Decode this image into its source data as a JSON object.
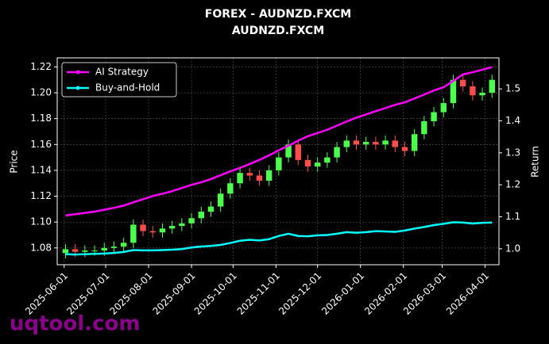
{
  "chart_data": {
    "type": "candlestick",
    "title": "FOREX - AUDNZD.FXCM",
    "subtitle": "AUDNZD.FXCM",
    "ylabel": "Price",
    "y2label": "Return",
    "watermark": "uqtool.com",
    "x": [
      "2025-06-02",
      "2025-06-09",
      "2025-06-16",
      "2025-06-23",
      "2025-06-30",
      "2025-07-07",
      "2025-07-14",
      "2025-07-21",
      "2025-07-28",
      "2025-08-04",
      "2025-08-11",
      "2025-08-18",
      "2025-08-25",
      "2025-09-01",
      "2025-09-08",
      "2025-09-15",
      "2025-09-22",
      "2025-09-29",
      "2025-10-06",
      "2025-10-13",
      "2025-10-20",
      "2025-10-27",
      "2025-11-03",
      "2025-11-10",
      "2025-11-17",
      "2025-11-24",
      "2025-12-01",
      "2025-12-08",
      "2025-12-15",
      "2025-12-22",
      "2025-12-29",
      "2026-01-05",
      "2026-01-12",
      "2026-01-19",
      "2026-01-26",
      "2026-02-02",
      "2026-02-09",
      "2026-02-16",
      "2026-02-23",
      "2026-03-02",
      "2026-03-09",
      "2026-03-16",
      "2026-03-23",
      "2026-03-30",
      "2026-04-06"
    ],
    "open": [
      1.076,
      1.079,
      1.077,
      1.078,
      1.078,
      1.08,
      1.081,
      1.084,
      1.098,
      1.093,
      1.092,
      1.095,
      1.097,
      1.099,
      1.103,
      1.108,
      1.112,
      1.122,
      1.13,
      1.138,
      1.136,
      1.132,
      1.14,
      1.15,
      1.16,
      1.148,
      1.143,
      1.146,
      1.15,
      1.158,
      1.163,
      1.16,
      1.162,
      1.16,
      1.163,
      1.158,
      1.155,
      1.168,
      1.178,
      1.185,
      1.192,
      1.21,
      1.205,
      1.198,
      1.2
    ],
    "high": [
      1.083,
      1.083,
      1.082,
      1.082,
      1.084,
      1.085,
      1.088,
      1.102,
      1.102,
      1.097,
      1.099,
      1.101,
      1.103,
      1.107,
      1.112,
      1.116,
      1.126,
      1.134,
      1.142,
      1.142,
      1.14,
      1.144,
      1.154,
      1.164,
      1.164,
      1.152,
      1.15,
      1.154,
      1.162,
      1.167,
      1.167,
      1.166,
      1.166,
      1.167,
      1.167,
      1.162,
      1.172,
      1.182,
      1.189,
      1.196,
      1.214,
      1.214,
      1.209,
      1.204,
      1.214
    ],
    "low": [
      1.072,
      1.073,
      1.073,
      1.074,
      1.074,
      1.076,
      1.077,
      1.08,
      1.089,
      1.088,
      1.088,
      1.091,
      1.093,
      1.095,
      1.099,
      1.104,
      1.108,
      1.118,
      1.126,
      1.132,
      1.128,
      1.128,
      1.136,
      1.146,
      1.144,
      1.139,
      1.139,
      1.142,
      1.146,
      1.154,
      1.156,
      1.156,
      1.156,
      1.156,
      1.154,
      1.151,
      1.151,
      1.164,
      1.174,
      1.181,
      1.188,
      1.201,
      1.194,
      1.194,
      1.196
    ],
    "close": [
      1.079,
      1.077,
      1.078,
      1.078,
      1.08,
      1.081,
      1.084,
      1.098,
      1.093,
      1.092,
      1.095,
      1.097,
      1.099,
      1.103,
      1.108,
      1.112,
      1.122,
      1.13,
      1.138,
      1.136,
      1.132,
      1.14,
      1.15,
      1.16,
      1.148,
      1.143,
      1.146,
      1.15,
      1.158,
      1.163,
      1.16,
      1.162,
      1.16,
      1.163,
      1.158,
      1.155,
      1.168,
      1.178,
      1.185,
      1.192,
      1.21,
      1.205,
      1.198,
      1.2,
      1.21
    ],
    "up_color": "#4cff4c",
    "down_color": "#ff4c4c",
    "series": [
      {
        "name": "AI Strategy",
        "color": "#ff00ff",
        "axis": "y2",
        "values": [
          1.104,
          1.108,
          1.112,
          1.116,
          1.122,
          1.128,
          1.135,
          1.145,
          1.155,
          1.165,
          1.172,
          1.18,
          1.19,
          1.2,
          1.208,
          1.218,
          1.23,
          1.242,
          1.253,
          1.265,
          1.278,
          1.292,
          1.308,
          1.322,
          1.338,
          1.352,
          1.362,
          1.372,
          1.385,
          1.398,
          1.41,
          1.42,
          1.43,
          1.44,
          1.45,
          1.458,
          1.47,
          1.482,
          1.495,
          1.505,
          1.525,
          1.545,
          1.552,
          1.56,
          1.568
        ]
      },
      {
        "name": "Buy-and-Hold",
        "color": "#00ffff",
        "axis": "y2",
        "values": [
          0.983,
          0.982,
          0.983,
          0.984,
          0.985,
          0.987,
          0.99,
          0.996,
          0.995,
          0.995,
          0.996,
          0.997,
          0.999,
          1.004,
          1.007,
          1.009,
          1.012,
          1.018,
          1.025,
          1.028,
          1.026,
          1.03,
          1.04,
          1.047,
          1.04,
          1.039,
          1.042,
          1.043,
          1.047,
          1.052,
          1.05,
          1.052,
          1.055,
          1.054,
          1.053,
          1.057,
          1.063,
          1.068,
          1.074,
          1.078,
          1.083,
          1.082,
          1.079,
          1.081,
          1.082
        ]
      }
    ],
    "xlim": [
      "2025-05-27",
      "2026-04-11"
    ],
    "xticks": [
      "2025-06-01",
      "2025-07-01",
      "2025-08-01",
      "2025-09-01",
      "2025-10-01",
      "2025-11-01",
      "2025-12-01",
      "2026-01-01",
      "2026-02-01",
      "2026-03-01",
      "2026-04-01"
    ],
    "ylim": [
      1.067,
      1.227
    ],
    "yticks": [
      1.08,
      {
        "value": 1.1,
        "label": "1.10"
      },
      1.12,
      1.14,
      1.16,
      1.18,
      {
        "value": 1.2,
        "label": "1.20"
      },
      1.22
    ],
    "y2lim": [
      0.95,
      1.597
    ],
    "y2ticks": [
      {
        "value": 1,
        "label": "1.0"
      },
      1.1,
      1.2,
      1.3,
      1.4,
      1.5
    ],
    "grid": true,
    "legend": "upper left"
  }
}
